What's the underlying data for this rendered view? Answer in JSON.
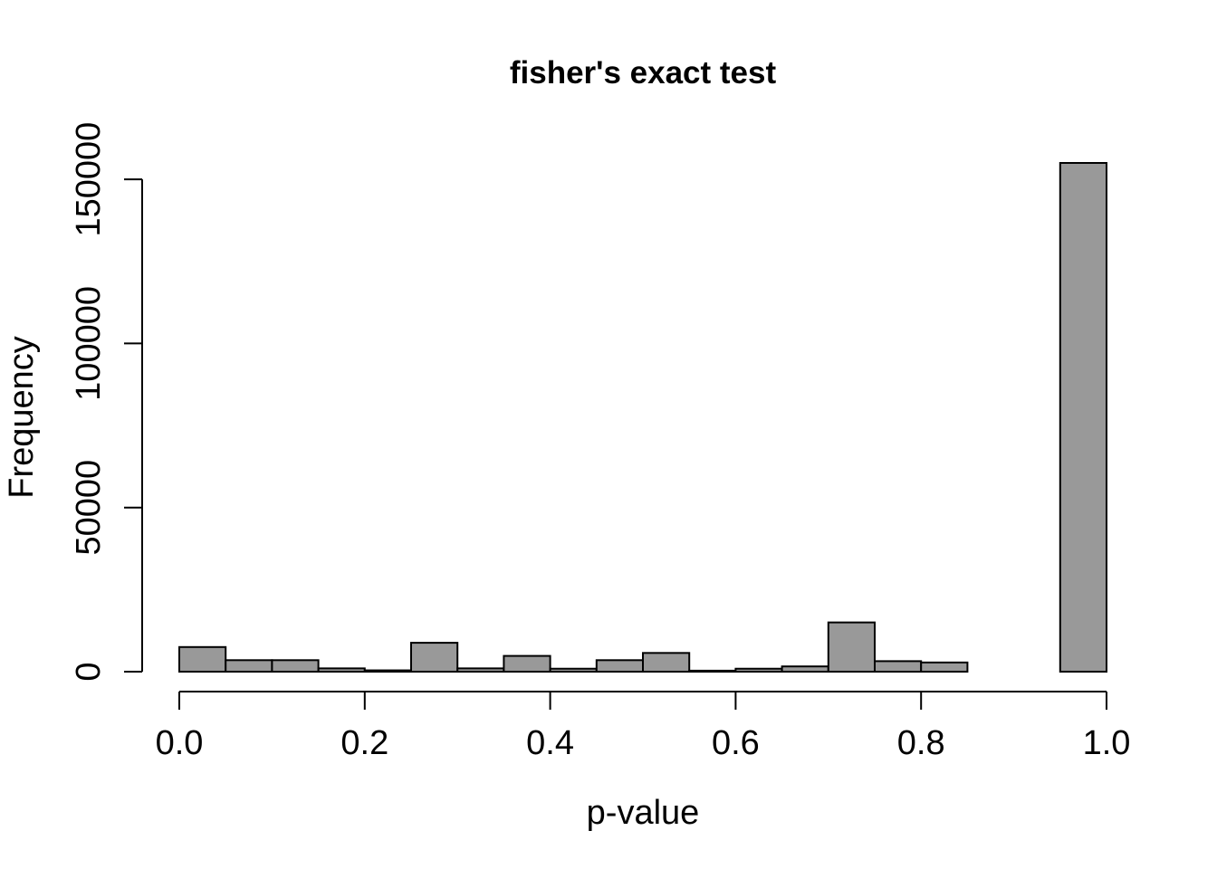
{
  "chart_data": {
    "type": "bar",
    "title": "fisher's exact test",
    "xlabel": "p-value",
    "ylabel": "Frequency",
    "xlim": [
      0,
      1
    ],
    "ylim": [
      0,
      155000
    ],
    "bin_width": 0.05,
    "x_ticks": [
      "0.0",
      "0.2",
      "0.4",
      "0.6",
      "0.8",
      "1.0"
    ],
    "x_tick_values": [
      0,
      0.2,
      0.4,
      0.6,
      0.8,
      1.0
    ],
    "y_ticks": [
      "0",
      "50000",
      "100000",
      "150000"
    ],
    "y_tick_values": [
      0,
      50000,
      100000,
      150000
    ],
    "bins": [
      {
        "start": 0.0,
        "end": 0.05,
        "count": 7500
      },
      {
        "start": 0.05,
        "end": 0.1,
        "count": 3500
      },
      {
        "start": 0.1,
        "end": 0.15,
        "count": 3500
      },
      {
        "start": 0.15,
        "end": 0.2,
        "count": 1000
      },
      {
        "start": 0.2,
        "end": 0.25,
        "count": 400
      },
      {
        "start": 0.25,
        "end": 0.3,
        "count": 8800
      },
      {
        "start": 0.3,
        "end": 0.35,
        "count": 1000
      },
      {
        "start": 0.35,
        "end": 0.4,
        "count": 4800
      },
      {
        "start": 0.4,
        "end": 0.45,
        "count": 900
      },
      {
        "start": 0.45,
        "end": 0.5,
        "count": 3500
      },
      {
        "start": 0.5,
        "end": 0.55,
        "count": 5700
      },
      {
        "start": 0.55,
        "end": 0.6,
        "count": 300
      },
      {
        "start": 0.6,
        "end": 0.65,
        "count": 900
      },
      {
        "start": 0.65,
        "end": 0.7,
        "count": 1600
      },
      {
        "start": 0.7,
        "end": 0.75,
        "count": 15000
      },
      {
        "start": 0.75,
        "end": 0.8,
        "count": 3200
      },
      {
        "start": 0.8,
        "end": 0.85,
        "count": 2800
      },
      {
        "start": 0.85,
        "end": 0.9,
        "count": 0
      },
      {
        "start": 0.9,
        "end": 0.95,
        "count": 0
      },
      {
        "start": 0.95,
        "end": 1.0,
        "count": 155000
      }
    ]
  }
}
